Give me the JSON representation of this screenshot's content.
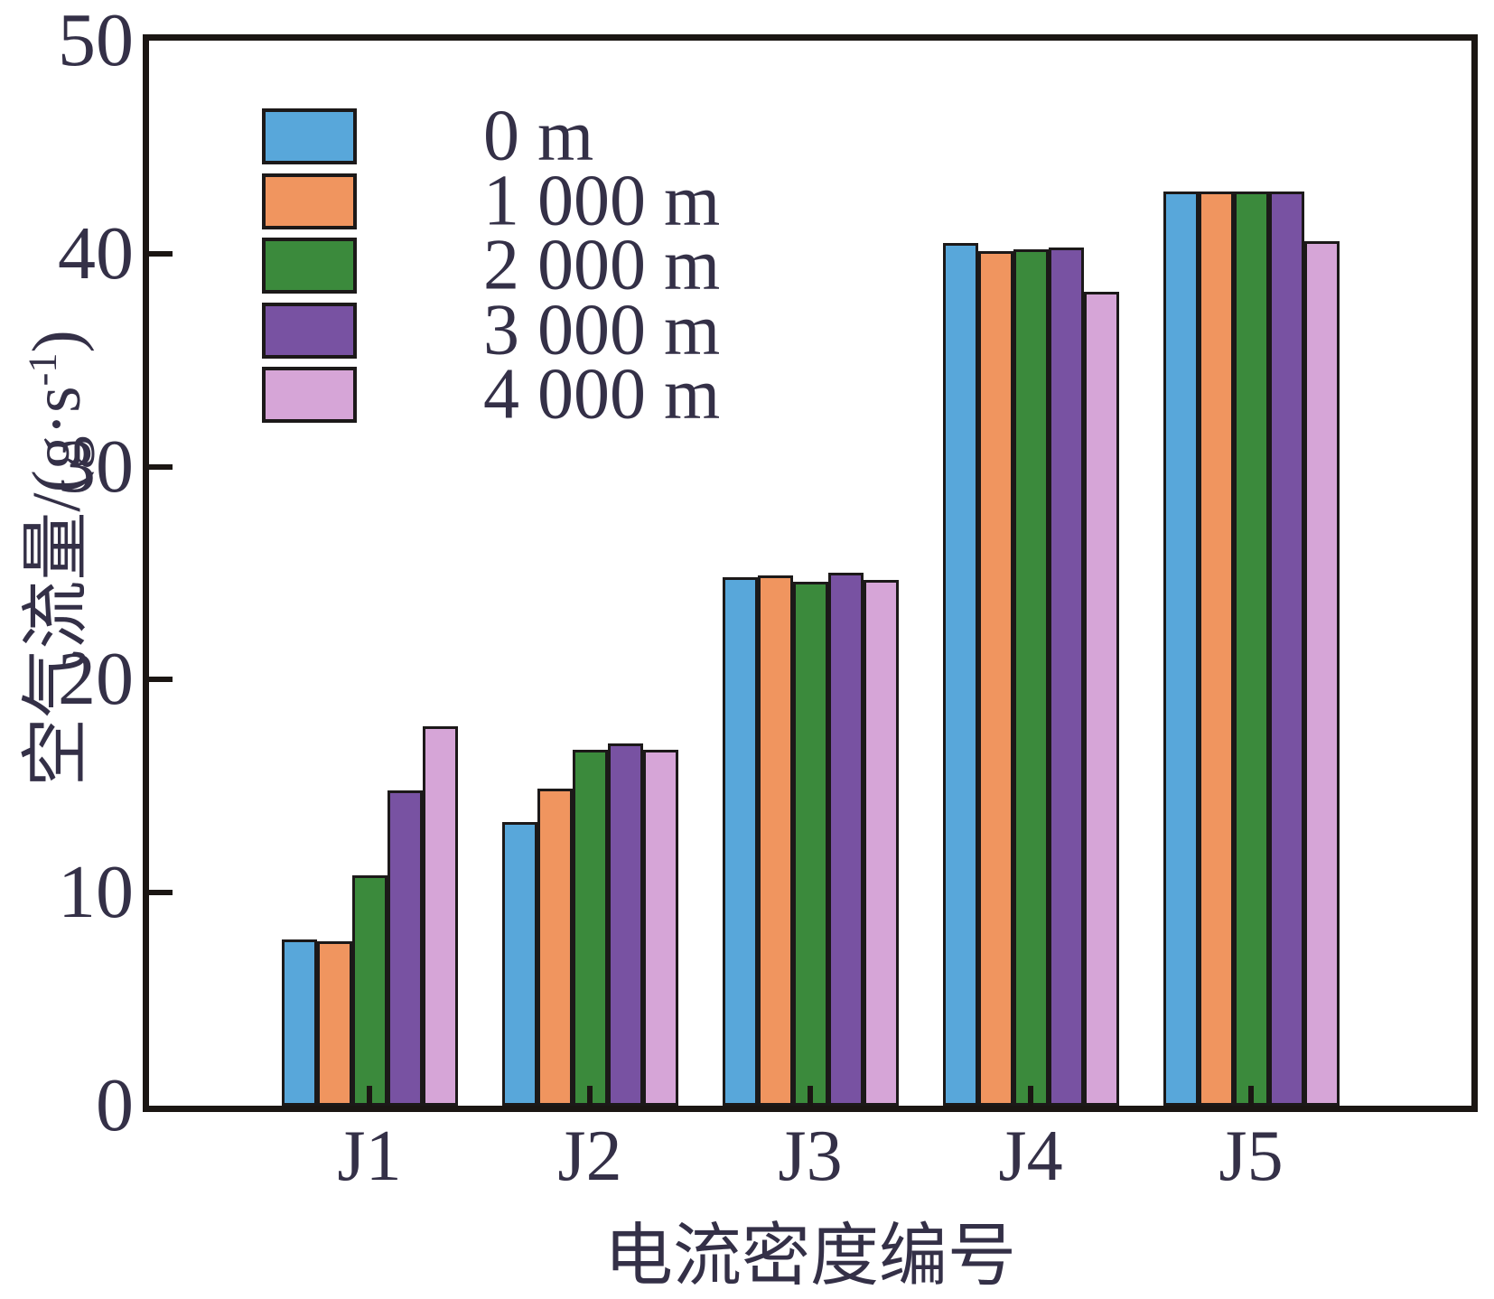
{
  "figure": {
    "background": "#ffffff",
    "text_color": "#343047",
    "axis_color": "#1b1613",
    "bar_outline_color": "#1c1919"
  },
  "y_axis": {
    "title_prefix": "空气流量/(g·s",
    "title_sup": "-1",
    "title_suffix": ")",
    "ticks": [
      0,
      10,
      20,
      30,
      40,
      50
    ],
    "range": [
      0,
      50
    ]
  },
  "x_axis": {
    "title": "电流密度编号"
  },
  "legend": {
    "position": "upper-left",
    "items": [
      {
        "label": "0 m",
        "color": "#58a7da"
      },
      {
        "label": "1 000 m",
        "color": "#f0955f"
      },
      {
        "label": "2 000 m",
        "color": "#3b8a3c"
      },
      {
        "label": "3 000 m",
        "color": "#7852a2"
      },
      {
        "label": "4 000 m",
        "color": "#d6a5d7"
      }
    ]
  },
  "chart_data": {
    "type": "bar",
    "title": "",
    "xlabel": "电流密度编号",
    "ylabel": "空气流量/(g·s⁻¹)",
    "ylim": [
      0,
      50
    ],
    "grid": false,
    "legend_position": "upper-left",
    "categories": [
      "J1",
      "J2",
      "J3",
      "J4",
      "J5"
    ],
    "series": [
      {
        "name": "0 m",
        "color": "#58a7da",
        "values": [
          7.8,
          13.3,
          24.8,
          40.5,
          42.9
        ]
      },
      {
        "name": "1 000 m",
        "color": "#f0955f",
        "values": [
          7.7,
          14.9,
          24.9,
          40.1,
          42.9
        ]
      },
      {
        "name": "2 000 m",
        "color": "#3b8a3c",
        "values": [
          10.8,
          16.7,
          24.6,
          40.2,
          42.9
        ]
      },
      {
        "name": "3 000 m",
        "color": "#7852a2",
        "values": [
          14.8,
          17.0,
          25.0,
          40.3,
          42.9
        ]
      },
      {
        "name": "4 000 m",
        "color": "#d6a5d7",
        "values": [
          17.8,
          16.7,
          24.7,
          38.2,
          40.6
        ]
      }
    ]
  }
}
